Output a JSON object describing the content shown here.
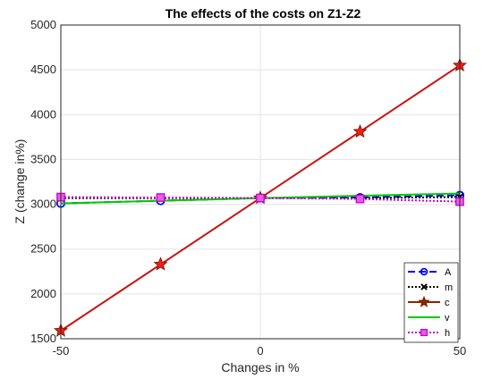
{
  "chart_data": {
    "type": "line",
    "title": "The effects of the costs on Z1-Z2",
    "xlabel": "Changes in %",
    "ylabel": "Z (change in%)",
    "x": [
      -50,
      -25,
      0,
      25,
      50
    ],
    "xlim": [
      -50,
      50
    ],
    "ylim": [
      1500,
      5000
    ],
    "xticks": [
      "-50",
      "0",
      "50"
    ],
    "yticks": [
      "1500",
      "2000",
      "2500",
      "3000",
      "3500",
      "4000",
      "4500",
      "5000"
    ],
    "grid": true,
    "legend_position": "bottom-right",
    "series": [
      {
        "name": "A",
        "values": [
          3010,
          3040,
          3070,
          3075,
          3100
        ],
        "color": "#0000ff",
        "dash": "8,4",
        "marker": "circle"
      },
      {
        "name": "m",
        "values": [
          3070,
          3070,
          3070,
          3070,
          3080
        ],
        "color": "#000000",
        "dash": "2,2",
        "marker": "x"
      },
      {
        "name": "c",
        "values": [
          1590,
          2330,
          3070,
          3810,
          4550
        ],
        "color": "#c00000",
        "dash": "",
        "marker": "star"
      },
      {
        "name": "v",
        "values": [
          3010,
          3040,
          3070,
          3095,
          3120
        ],
        "color": "#00cc00",
        "dash": "",
        "marker": "none"
      },
      {
        "name": "h",
        "values": [
          3080,
          3075,
          3070,
          3060,
          3030
        ],
        "color": "#cc00cc",
        "dash": "2,2",
        "marker": "square"
      }
    ]
  }
}
